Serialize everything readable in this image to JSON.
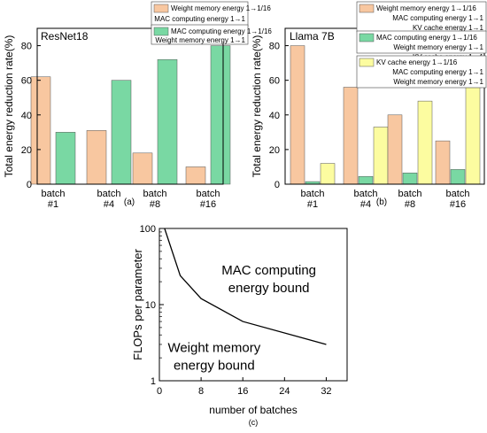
{
  "colors": {
    "orange": "#F8C7A0",
    "green": "#79D8A3",
    "yellow": "#FCFCA0",
    "axis": "#000000"
  },
  "chart_data": [
    {
      "id": "a",
      "type": "bar",
      "panel_label": "(a)",
      "model_label": "ResNet18",
      "ylabel": "Total energy reduction rate(%)",
      "ylim": [
        0,
        90
      ],
      "yticks": [
        0,
        20,
        40,
        60,
        80
      ],
      "categories": [
        [
          "batch",
          "#1"
        ],
        [
          "batch",
          "#4"
        ],
        [
          "batch",
          "#8"
        ],
        [
          "batch",
          "#16"
        ]
      ],
      "legend_position": "top",
      "series": [
        {
          "color": "orange",
          "legend": [
            "Weight memory energy 1→1/16",
            "MAC computing energy 1→1"
          ],
          "values": [
            62,
            31,
            18,
            10
          ]
        },
        {
          "color": "green",
          "legend": [
            "MAC computing energy 1→1/16",
            "Weight memory energy 1→1"
          ],
          "values": [
            30,
            60,
            72,
            80
          ]
        }
      ]
    },
    {
      "id": "b",
      "type": "bar",
      "panel_label": "(b)",
      "model_label": "Llama 7B",
      "ylabel": "Total energy reduction rate(%)",
      "ylim": [
        0,
        90
      ],
      "yticks": [
        0,
        20,
        40,
        60,
        80
      ],
      "categories": [
        [
          "batch",
          "#1"
        ],
        [
          "batch",
          "#4"
        ],
        [
          "batch",
          "#8"
        ],
        [
          "batch",
          "#16"
        ]
      ],
      "legend_position": "top-right",
      "series": [
        {
          "color": "orange",
          "legend": [
            "Weight memory energy 1→1/16",
            "MAC computing energy 1→1",
            "KV cache energy 1→1"
          ],
          "values": [
            80,
            56,
            40,
            25
          ]
        },
        {
          "color": "green",
          "legend": [
            "MAC computing energy 1→1/16",
            "Weight memory energy 1→1",
            "KV cache energy 1→1"
          ],
          "values": [
            1.5,
            4.5,
            6.5,
            8.5
          ]
        },
        {
          "color": "yellow",
          "legend": [
            "KV cache energy 1→1/16",
            "MAC computing energy 1→1",
            "Weight memory energy 1→1"
          ],
          "values": [
            12,
            33,
            48,
            60
          ]
        }
      ]
    },
    {
      "id": "c",
      "type": "line",
      "panel_label": "(c)",
      "xlabel": "number of batches",
      "ylabel": "FLOPs per parameter",
      "xlim": [
        0,
        36
      ],
      "xticks": [
        0,
        8,
        16,
        24,
        32
      ],
      "yscale": "log",
      "ylim": [
        1,
        100
      ],
      "yticks": [
        1,
        10,
        100
      ],
      "x": [
        1,
        4,
        8,
        16,
        32
      ],
      "y": [
        100,
        24,
        12,
        6,
        3
      ],
      "annotations": [
        {
          "lines": [
            "MAC computing",
            "energy bound"
          ],
          "at": [
            21,
            25
          ]
        },
        {
          "lines": [
            "Weight memory",
            "energy bound"
          ],
          "at": [
            10.5,
            2.4
          ]
        }
      ]
    }
  ]
}
